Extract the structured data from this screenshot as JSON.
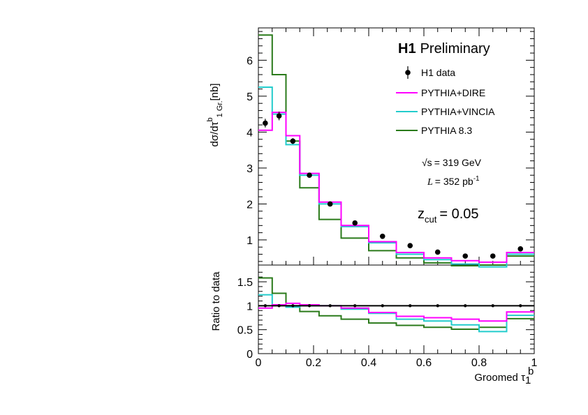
{
  "chart_data": [
    {
      "type": "histogram",
      "panel": "main",
      "title": "H1 Preliminary",
      "title_bold": "H1",
      "title_rest": "Preliminary",
      "xlabel": "Groomed τ₁ᵇ",
      "ylabel": "dσ/dτ₁ᵇ Gr. [nb]",
      "ylabel_main": "dσ/dτ",
      "ylabel_sub": "1 Gr.",
      "ylabel_sup": "b",
      "ylabel_unit": "[nb]",
      "xlim": [
        0,
        1
      ],
      "ylim": [
        0.3,
        6.9
      ],
      "yticks": [
        1,
        2,
        3,
        4,
        5,
        6
      ],
      "bin_edges": [
        0,
        0.05,
        0.1,
        0.15,
        0.22,
        0.3,
        0.4,
        0.5,
        0.6,
        0.7,
        0.8,
        0.9,
        1.0
      ],
      "data": {
        "name": "H1 data",
        "x": [
          0.025,
          0.075,
          0.125,
          0.185,
          0.26,
          0.35,
          0.45,
          0.55,
          0.65,
          0.75,
          0.85,
          0.95
        ],
        "y": [
          4.25,
          4.45,
          3.75,
          2.8,
          2.0,
          1.47,
          1.1,
          0.84,
          0.66,
          0.55,
          0.55,
          0.75
        ],
        "err": [
          0.12,
          0.12,
          0.08,
          0.06,
          0.05,
          0.04,
          0.03,
          0.03,
          0.03,
          0.03,
          0.03,
          0.05
        ]
      },
      "series": [
        {
          "name": "PYTHIA+DIRE",
          "color": "#ff00ff",
          "values": [
            4.05,
            4.55,
            3.9,
            2.85,
            2.05,
            1.4,
            0.95,
            0.65,
            0.5,
            0.42,
            0.38,
            0.65
          ]
        },
        {
          "name": "PYTHIA+VINCIA",
          "color": "#22cccc",
          "values": [
            5.25,
            4.5,
            3.65,
            2.8,
            2.0,
            1.37,
            0.92,
            0.6,
            0.45,
            0.33,
            0.25,
            0.6
          ]
        },
        {
          "name": "PYTHIA 8.3",
          "color": "#2a7a1a",
          "values": [
            6.7,
            5.6,
            3.75,
            2.45,
            1.57,
            1.05,
            0.7,
            0.5,
            0.36,
            0.28,
            0.3,
            0.55
          ]
        }
      ],
      "annotations": {
        "sqrt_s_symbol": "√s",
        "energy": "= 319 GeV",
        "lumi_symbol": "L",
        "lumi_value": "= 352 pb",
        "lumi_exp": "-1",
        "zcut_main": "z",
        "zcut_sub": "cut",
        "zcut_value": "= 0.05"
      }
    },
    {
      "type": "histogram",
      "panel": "ratio",
      "ylabel": "Ratio to data",
      "xlim": [
        0,
        1
      ],
      "ylim": [
        0,
        1.85
      ],
      "yticks": [
        0,
        0.5,
        1,
        1.5
      ],
      "ytick_labels": [
        "0",
        "0.5",
        "1",
        "1.5"
      ],
      "xticks": [
        0,
        0.2,
        0.4,
        0.6,
        0.8,
        1
      ],
      "xtick_labels": [
        "0",
        "0.2",
        "0.4",
        "0.6",
        "0.8",
        "1"
      ],
      "data_ratio": [
        1,
        1,
        1,
        1,
        1,
        1,
        1,
        1,
        1,
        1,
        1,
        1
      ],
      "series": [
        {
          "name": "PYTHIA+DIRE",
          "color": "#ff00ff",
          "values": [
            0.95,
            1.02,
            1.05,
            1.02,
            1.0,
            0.95,
            0.86,
            0.78,
            0.75,
            0.72,
            0.68,
            0.87
          ]
        },
        {
          "name": "PYTHIA+VINCIA",
          "color": "#22cccc",
          "values": [
            1.23,
            1.01,
            0.97,
            1.0,
            1.0,
            0.93,
            0.84,
            0.72,
            0.68,
            0.6,
            0.46,
            0.8
          ]
        },
        {
          "name": "PYTHIA 8.3",
          "color": "#2a7a1a",
          "values": [
            1.58,
            1.26,
            1.0,
            0.88,
            0.79,
            0.72,
            0.64,
            0.59,
            0.55,
            0.51,
            0.55,
            0.73
          ]
        }
      ]
    }
  ]
}
